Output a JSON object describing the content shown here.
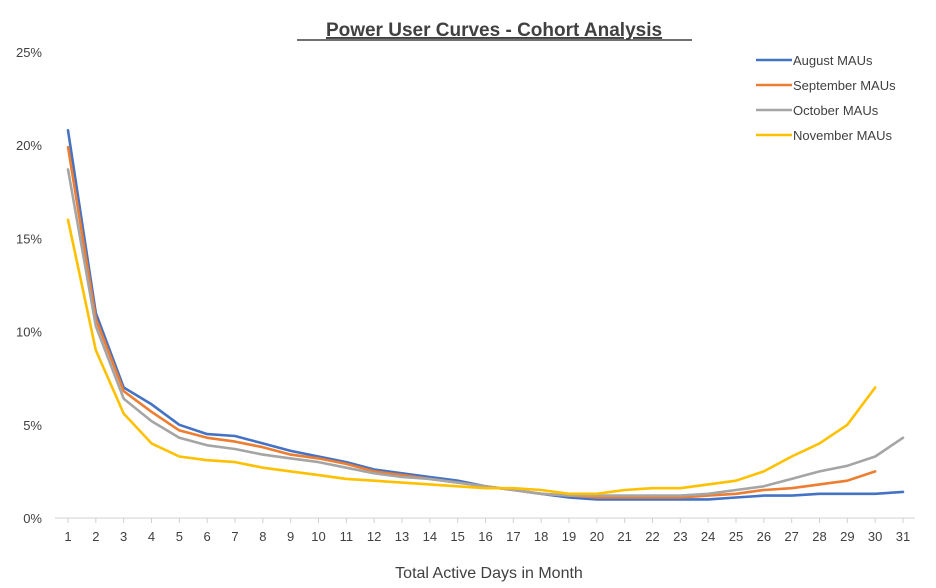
{
  "chart_data": {
    "type": "line",
    "title": "Power User Curves - Cohort Analysis",
    "xlabel": "Total Active Days in Month",
    "ylabel": "",
    "x": [
      1,
      2,
      3,
      4,
      5,
      6,
      7,
      8,
      9,
      10,
      11,
      12,
      13,
      14,
      15,
      16,
      17,
      18,
      19,
      20,
      21,
      22,
      23,
      24,
      25,
      26,
      27,
      28,
      29,
      30,
      31
    ],
    "ylim": [
      0,
      25
    ],
    "yticks": [
      0,
      5,
      10,
      15,
      20,
      25
    ],
    "ytick_labels": [
      "0%",
      "5%",
      "10%",
      "15%",
      "20%",
      "25%"
    ],
    "grid": false,
    "legend_position": "top-right",
    "series": [
      {
        "name": "August MAUs",
        "color": "#4472C4",
        "values": [
          20.8,
          11.0,
          7.0,
          6.1,
          5.0,
          4.5,
          4.4,
          4.0,
          3.6,
          3.3,
          3.0,
          2.6,
          2.4,
          2.2,
          2.0,
          1.7,
          1.5,
          1.3,
          1.1,
          1.0,
          1.0,
          1.0,
          1.0,
          1.0,
          1.1,
          1.2,
          1.2,
          1.3,
          1.3,
          1.3,
          1.4
        ]
      },
      {
        "name": "September MAUs",
        "color": "#ED7D31",
        "values": [
          19.9,
          10.7,
          6.8,
          5.7,
          4.7,
          4.3,
          4.1,
          3.8,
          3.4,
          3.2,
          2.9,
          2.5,
          2.3,
          2.1,
          1.9,
          1.7,
          1.5,
          1.3,
          1.2,
          1.1,
          1.1,
          1.1,
          1.1,
          1.2,
          1.3,
          1.5,
          1.6,
          1.8,
          2.0,
          2.5,
          null
        ]
      },
      {
        "name": "October MAUs",
        "color": "#A5A5A5",
        "values": [
          18.7,
          10.3,
          6.4,
          5.2,
          4.3,
          3.9,
          3.7,
          3.4,
          3.2,
          3.0,
          2.7,
          2.4,
          2.2,
          2.1,
          1.9,
          1.7,
          1.5,
          1.3,
          1.2,
          1.2,
          1.2,
          1.2,
          1.2,
          1.3,
          1.5,
          1.7,
          2.1,
          2.5,
          2.8,
          3.3,
          4.3
        ]
      },
      {
        "name": "November MAUs",
        "color": "#FFC000",
        "values": [
          16.0,
          9.0,
          5.6,
          4.0,
          3.3,
          3.1,
          3.0,
          2.7,
          2.5,
          2.3,
          2.1,
          2.0,
          1.9,
          1.8,
          1.7,
          1.6,
          1.6,
          1.5,
          1.3,
          1.3,
          1.5,
          1.6,
          1.6,
          1.8,
          2.0,
          2.5,
          3.3,
          4.0,
          5.0,
          7.0,
          null
        ]
      }
    ]
  }
}
